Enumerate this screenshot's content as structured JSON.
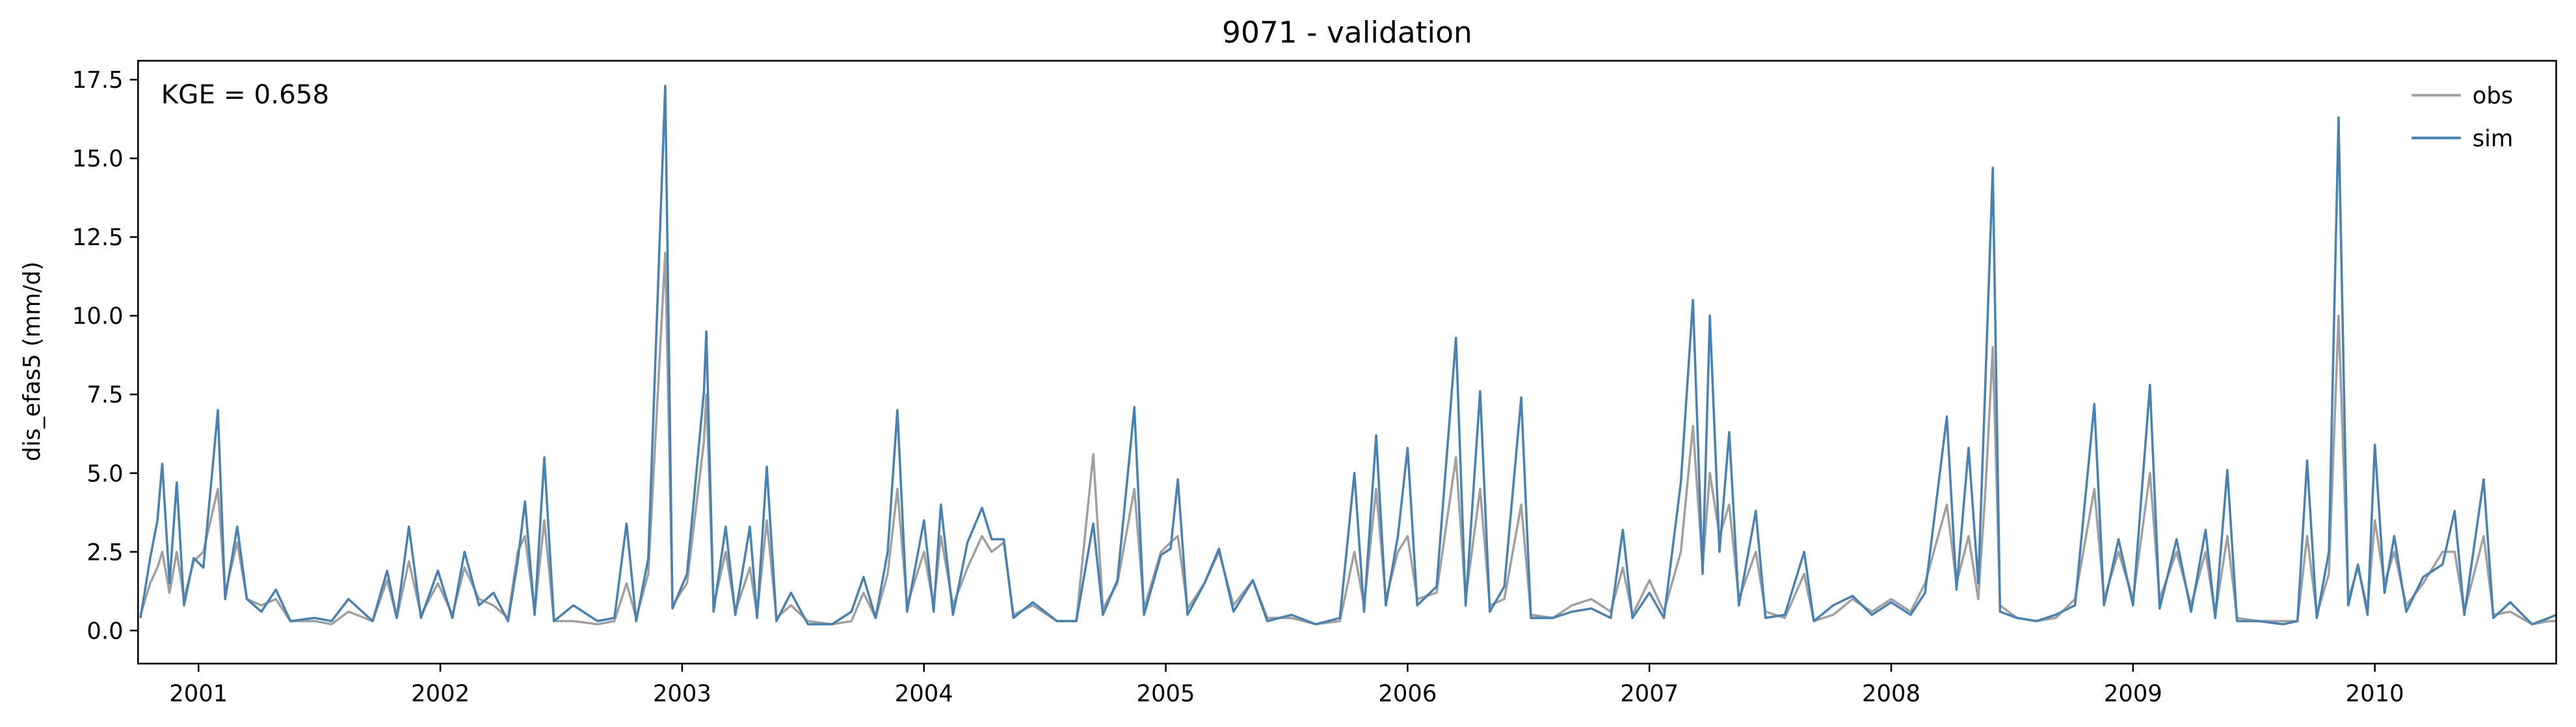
{
  "chart_data": {
    "type": "line",
    "title": "9071 - validation",
    "ylabel": "dis_efas5 (mm/d)",
    "annotation": "KGE = 0.658",
    "legend": "upper right",
    "grid": false,
    "xlim": [
      2000.75,
      2010.75
    ],
    "xticks": [
      2001,
      2002,
      2003,
      2004,
      2005,
      2006,
      2007,
      2008,
      2009,
      2010
    ],
    "ylim": [
      -1.05,
      18.1
    ],
    "yticks": [
      {
        "value": 0,
        "label": "0.0"
      },
      2.5,
      {
        "value": 5,
        "label": "5.0"
      },
      7.5,
      {
        "value": 10,
        "label": "10.0"
      },
      12.5,
      {
        "value": 15,
        "label": "15.0"
      },
      17.5
    ],
    "x": [
      2000.76,
      2000.8,
      2000.83,
      2000.85,
      2000.88,
      2000.91,
      2000.94,
      2000.98,
      2001.02,
      2001.08,
      2001.11,
      2001.16,
      2001.2,
      2001.26,
      2001.32,
      2001.38,
      2001.48,
      2001.55,
      2001.62,
      2001.72,
      2001.78,
      2001.82,
      2001.87,
      2001.92,
      2001.99,
      2002.05,
      2002.1,
      2002.16,
      2002.22,
      2002.28,
      2002.32,
      2002.35,
      2002.39,
      2002.43,
      2002.47,
      2002.55,
      2002.65,
      2002.72,
      2002.77,
      2002.81,
      2002.86,
      2002.93,
      2002.96,
      2003.02,
      2003.09,
      2003.1,
      2003.13,
      2003.18,
      2003.22,
      2003.28,
      2003.31,
      2003.35,
      2003.39,
      2003.45,
      2003.52,
      2003.62,
      2003.7,
      2003.75,
      2003.8,
      2003.85,
      2003.89,
      2003.93,
      2004.0,
      2004.04,
      2004.07,
      2004.12,
      2004.18,
      2004.24,
      2004.28,
      2004.33,
      2004.37,
      2004.45,
      2004.55,
      2004.63,
      2004.7,
      2004.74,
      2004.8,
      2004.87,
      2004.91,
      2004.98,
      2005.02,
      2005.05,
      2005.09,
      2005.16,
      2005.22,
      2005.28,
      2005.36,
      2005.42,
      2005.52,
      2005.62,
      2005.72,
      2005.78,
      2005.82,
      2005.87,
      2005.91,
      2005.96,
      2006.0,
      2006.04,
      2006.12,
      2006.2,
      2006.24,
      2006.3,
      2006.34,
      2006.4,
      2006.47,
      2006.51,
      2006.6,
      2006.68,
      2006.76,
      2006.84,
      2006.89,
      2006.93,
      2007.0,
      2007.06,
      2007.13,
      2007.18,
      2007.22,
      2007.25,
      2007.29,
      2007.33,
      2007.37,
      2007.44,
      2007.48,
      2007.56,
      2007.64,
      2007.68,
      2007.76,
      2007.84,
      2007.92,
      2008.0,
      2008.08,
      2008.14,
      2008.23,
      2008.27,
      2008.32,
      2008.36,
      2008.39,
      2008.42,
      2008.45,
      2008.52,
      2008.6,
      2008.68,
      2008.76,
      2008.84,
      2008.88,
      2008.94,
      2009.0,
      2009.07,
      2009.11,
      2009.18,
      2009.24,
      2009.3,
      2009.34,
      2009.39,
      2009.43,
      2009.52,
      2009.62,
      2009.68,
      2009.72,
      2009.76,
      2009.81,
      2009.85,
      2009.89,
      2009.93,
      2009.97,
      2010.0,
      2010.04,
      2010.08,
      2010.13,
      2010.2,
      2010.28,
      2010.33,
      2010.37,
      2010.45,
      2010.49,
      2010.56,
      2010.65,
      2010.72,
      2010.75
    ],
    "series": [
      {
        "name": "obs",
        "color": "#a0a0a0",
        "values": [
          0.5,
          1.5,
          2.0,
          2.5,
          1.2,
          2.5,
          1.0,
          2.2,
          2.5,
          4.5,
          1.2,
          2.8,
          1.0,
          0.8,
          1.0,
          0.3,
          0.3,
          0.2,
          0.6,
          0.3,
          1.6,
          0.4,
          2.2,
          0.5,
          1.5,
          0.5,
          2.0,
          1.0,
          0.8,
          0.4,
          2.5,
          3.0,
          0.6,
          3.5,
          0.3,
          0.3,
          0.2,
          0.3,
          1.5,
          0.4,
          1.8,
          12.0,
          0.8,
          1.5,
          6.0,
          7.5,
          0.8,
          2.5,
          0.6,
          2.0,
          0.5,
          3.5,
          0.4,
          0.8,
          0.3,
          0.2,
          0.3,
          1.2,
          0.4,
          1.8,
          4.5,
          0.8,
          2.5,
          0.8,
          3.0,
          0.8,
          2.0,
          3.0,
          2.5,
          2.8,
          0.5,
          0.8,
          0.3,
          0.3,
          5.6,
          0.7,
          1.5,
          4.5,
          0.7,
          2.5,
          2.8,
          3.0,
          0.7,
          1.5,
          2.5,
          0.8,
          1.6,
          0.4,
          0.4,
          0.2,
          0.3,
          2.5,
          0.8,
          4.5,
          1.0,
          2.5,
          3.0,
          1.0,
          1.2,
          5.5,
          1.0,
          4.5,
          0.8,
          1.0,
          4.0,
          0.5,
          0.4,
          0.8,
          1.0,
          0.6,
          2.0,
          0.5,
          1.6,
          0.6,
          2.5,
          6.5,
          2.0,
          5.0,
          3.0,
          4.0,
          1.0,
          2.5,
          0.6,
          0.4,
          1.8,
          0.3,
          0.5,
          1.0,
          0.6,
          1.0,
          0.6,
          1.5,
          4.0,
          1.5,
          3.0,
          1.0,
          4.5,
          9.0,
          0.8,
          0.4,
          0.3,
          0.4,
          1.0,
          4.5,
          1.0,
          2.5,
          1.0,
          5.0,
          1.0,
          2.5,
          0.8,
          2.5,
          0.5,
          3.0,
          0.4,
          0.3,
          0.3,
          0.3,
          3.0,
          0.5,
          1.8,
          10.0,
          1.0,
          2.0,
          0.7,
          3.5,
          1.5,
          2.5,
          0.8,
          1.5,
          2.5,
          2.5,
          0.6,
          3.0,
          0.5,
          0.6,
          0.2,
          0.3,
          0.3
        ]
      },
      {
        "name": "sim",
        "color": "#4682b4",
        "values": [
          0.4,
          2.3,
          3.5,
          5.3,
          1.5,
          4.7,
          0.8,
          2.3,
          2.0,
          7.0,
          1.0,
          3.3,
          1.0,
          0.6,
          1.3,
          0.3,
          0.4,
          0.3,
          1.0,
          0.3,
          1.9,
          0.4,
          3.3,
          0.4,
          1.9,
          0.4,
          2.5,
          0.8,
          1.2,
          0.3,
          2.2,
          4.1,
          0.5,
          5.5,
          0.3,
          0.8,
          0.3,
          0.4,
          3.4,
          0.3,
          2.3,
          17.3,
          0.7,
          1.8,
          7.6,
          9.5,
          0.6,
          3.3,
          0.5,
          3.3,
          0.4,
          5.2,
          0.3,
          1.2,
          0.2,
          0.2,
          0.6,
          1.7,
          0.4,
          2.5,
          7.0,
          0.6,
          3.5,
          0.6,
          4.0,
          0.5,
          2.8,
          3.9,
          2.9,
          2.9,
          0.4,
          0.9,
          0.3,
          0.3,
          3.4,
          0.5,
          1.6,
          7.1,
          0.5,
          2.4,
          2.6,
          4.8,
          0.5,
          1.5,
          2.6,
          0.6,
          1.6,
          0.3,
          0.5,
          0.2,
          0.4,
          5.0,
          0.6,
          6.2,
          0.8,
          3.0,
          5.8,
          0.8,
          1.4,
          9.3,
          0.8,
          7.6,
          0.6,
          1.4,
          7.4,
          0.4,
          0.4,
          0.6,
          0.7,
          0.4,
          3.2,
          0.4,
          1.2,
          0.4,
          4.7,
          10.5,
          1.8,
          10.0,
          2.5,
          6.3,
          0.8,
          3.8,
          0.4,
          0.5,
          2.5,
          0.3,
          0.8,
          1.1,
          0.5,
          0.9,
          0.5,
          1.2,
          6.8,
          1.3,
          5.8,
          1.5,
          8.0,
          14.7,
          0.6,
          0.4,
          0.3,
          0.5,
          0.8,
          7.2,
          0.8,
          2.9,
          0.8,
          7.8,
          0.7,
          2.9,
          0.6,
          3.2,
          0.4,
          5.1,
          0.3,
          0.3,
          0.2,
          0.3,
          5.4,
          0.4,
          2.5,
          16.3,
          0.8,
          2.1,
          0.5,
          5.9,
          1.2,
          3.0,
          0.6,
          1.7,
          2.1,
          3.8,
          0.5,
          4.8,
          0.4,
          0.9,
          0.2,
          0.4,
          0.5
        ]
      }
    ]
  }
}
